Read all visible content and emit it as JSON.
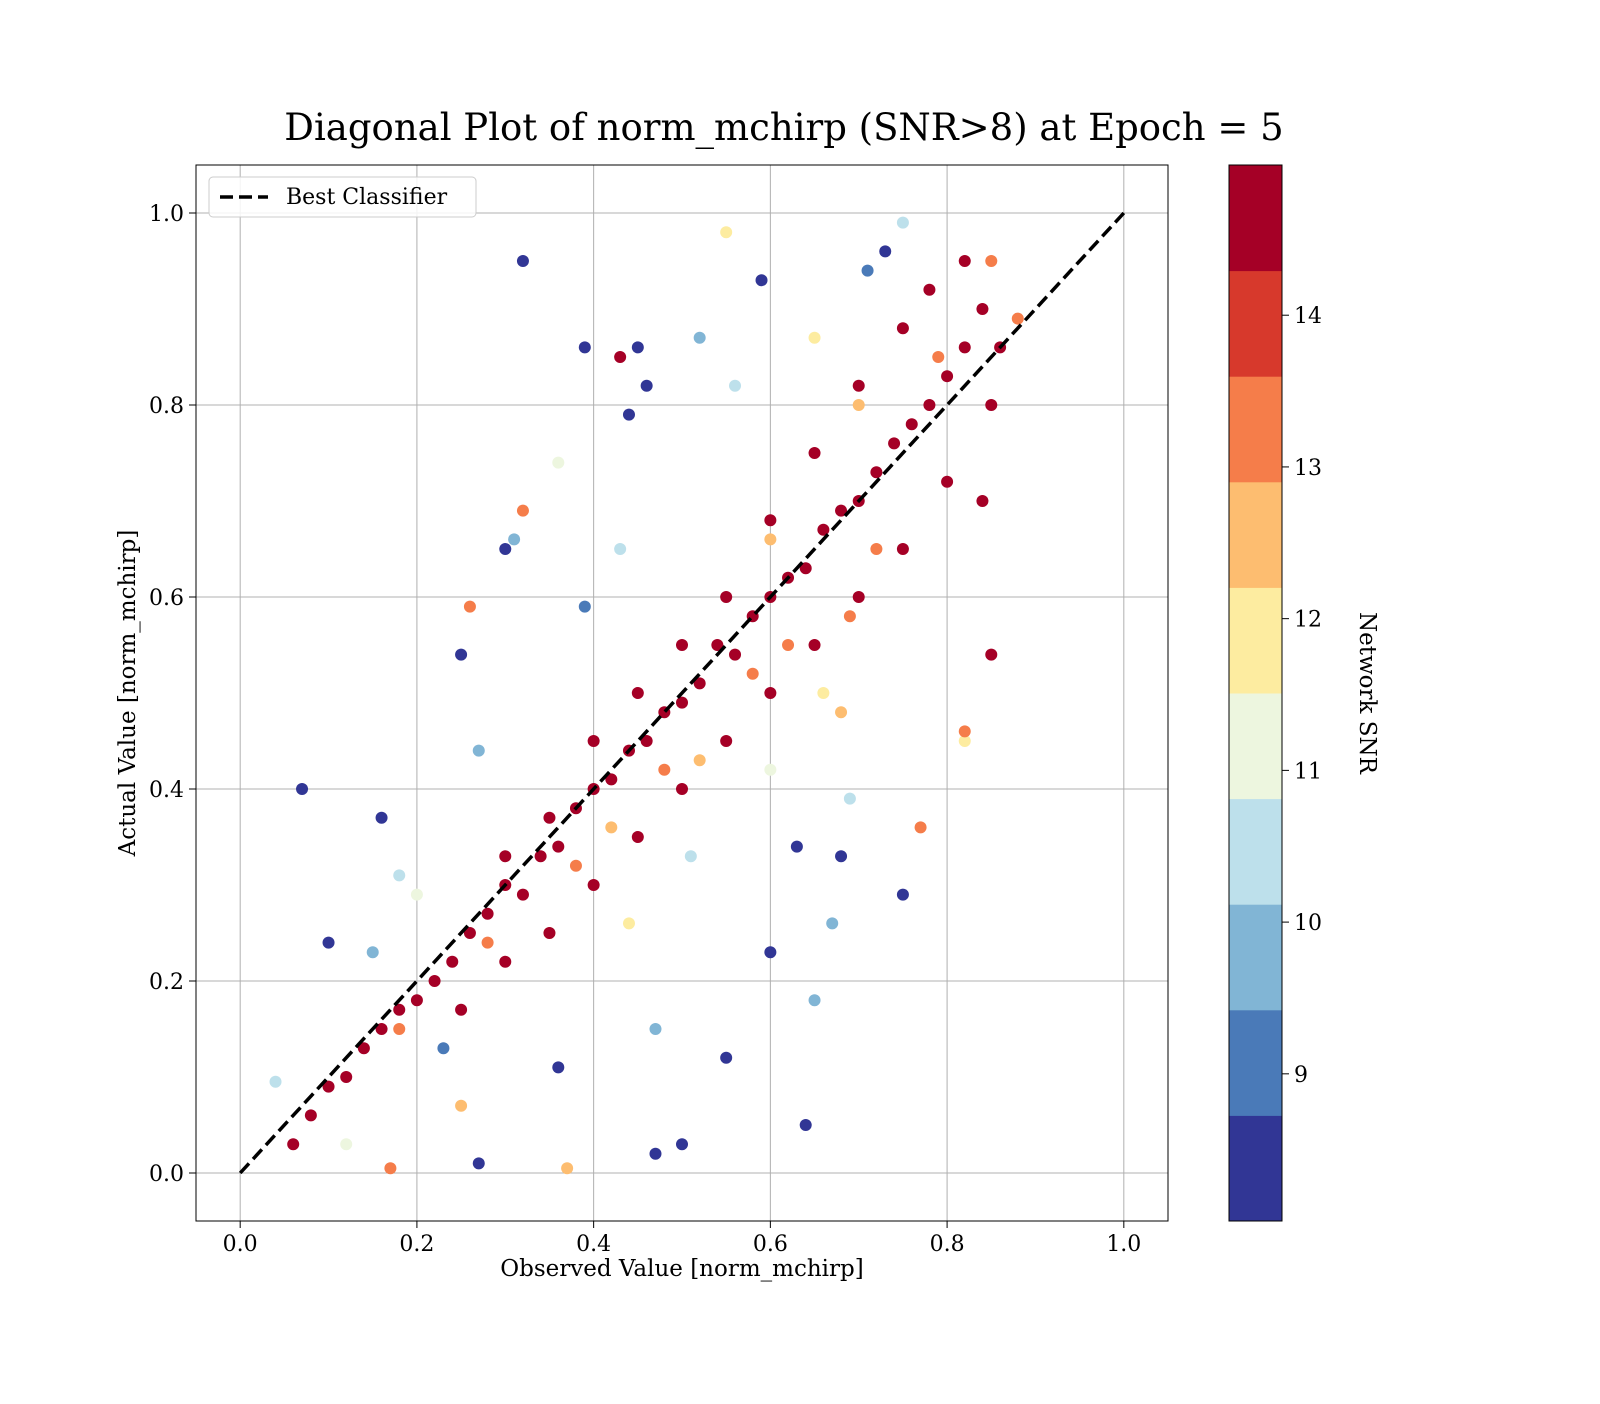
{
  "chart_data": {
    "type": "scatter",
    "title": "Diagonal Plot of norm_mchirp (SNR>8) at Epoch = 5",
    "x_label": "Observed Value [norm_mchirp]",
    "y_label": "Actual Value [norm_mchirp]",
    "xlim": [
      -0.05,
      1.05
    ],
    "ylim": [
      -0.05,
      1.05
    ],
    "xticks": [
      {
        "value": 0,
        "label": "0.0"
      },
      0.2,
      0.4,
      0.6,
      0.8,
      {
        "value": 1,
        "label": "1.0"
      }
    ],
    "yticks": [
      {
        "value": 0,
        "label": "0.0"
      },
      0.2,
      0.4,
      0.6,
      0.8,
      {
        "value": 1,
        "label": "1.0"
      }
    ],
    "grid": true,
    "legend": "upper left",
    "reference_line": {
      "name": "Best Classifier",
      "x": [
        0,
        1
      ],
      "values": [
        0,
        1
      ],
      "color": "#000000",
      "style": "dashed"
    },
    "x": [
      0.32,
      0.07,
      0.16,
      0.1,
      0.55,
      0.64,
      0.75,
      0.47,
      0.5,
      0.73,
      0.59,
      0.39,
      0.46,
      0.3,
      0.25,
      0.44,
      0.63,
      0.68,
      0.36,
      0.27,
      0.6,
      0.45,
      0.39,
      0.23,
      0.71,
      0.65,
      0.67,
      0.31,
      0.27,
      0.15,
      0.52,
      0.47,
      0.75,
      0.56,
      0.43,
      0.51,
      0.69,
      0.18,
      0.04,
      0.36,
      0.12,
      0.6,
      0.2,
      0.55,
      0.66,
      0.44,
      0.82,
      0.35,
      0.65,
      0.7,
      0.6,
      0.52,
      0.42,
      0.68,
      0.37,
      0.25,
      0.62,
      0.72,
      0.48,
      0.38,
      0.28,
      0.18,
      0.85,
      0.79,
      0.69,
      0.58,
      0.77,
      0.26,
      0.17,
      0.32,
      0.82,
      0.88,
      0.06,
      0.08,
      0.1,
      0.12,
      0.14,
      0.16,
      0.18,
      0.2,
      0.22,
      0.24,
      0.26,
      0.28,
      0.3,
      0.32,
      0.34,
      0.36,
      0.38,
      0.4,
      0.42,
      0.44,
      0.46,
      0.48,
      0.5,
      0.52,
      0.54,
      0.56,
      0.58,
      0.6,
      0.62,
      0.64,
      0.66,
      0.68,
      0.7,
      0.72,
      0.74,
      0.76,
      0.78,
      0.8,
      0.82,
      0.84,
      0.82,
      0.85,
      0.8,
      0.75,
      0.7,
      0.65,
      0.6,
      0.55,
      0.5,
      0.45,
      0.4,
      0.35,
      0.3,
      0.25,
      0.45,
      0.4,
      0.35,
      0.55,
      0.6,
      0.65,
      0.7,
      0.75,
      0.78,
      0.86,
      0.84,
      0.5,
      0.3,
      0.85,
      0.43
    ],
    "values": [
      0.95,
      0.4,
      0.37,
      0.24,
      0.12,
      0.05,
      0.29,
      0.02,
      0.03,
      0.96,
      0.93,
      0.86,
      0.82,
      0.65,
      0.54,
      0.79,
      0.34,
      0.33,
      0.11,
      0.01,
      0.23,
      0.86,
      0.59,
      0.13,
      0.94,
      0.18,
      0.26,
      0.66,
      0.44,
      0.23,
      0.87,
      0.15,
      0.99,
      0.82,
      0.65,
      0.33,
      0.39,
      0.31,
      0.095,
      0.74,
      0.03,
      0.42,
      0.29,
      0.98,
      0.5,
      0.26,
      0.45,
      0.25,
      0.87,
      0.8,
      0.66,
      0.43,
      0.36,
      0.48,
      0.005,
      0.07,
      0.55,
      0.65,
      0.42,
      0.32,
      0.24,
      0.15,
      0.95,
      0.85,
      0.58,
      0.52,
      0.36,
      0.59,
      0.005,
      0.69,
      0.46,
      0.89,
      0.03,
      0.06,
      0.09,
      0.1,
      0.13,
      0.15,
      0.17,
      0.18,
      0.2,
      0.22,
      0.25,
      0.27,
      0.3,
      0.29,
      0.33,
      0.34,
      0.38,
      0.4,
      0.41,
      0.44,
      0.45,
      0.48,
      0.49,
      0.51,
      0.55,
      0.54,
      0.58,
      0.6,
      0.62,
      0.63,
      0.67,
      0.69,
      0.7,
      0.73,
      0.76,
      0.78,
      0.8,
      0.83,
      0.86,
      0.9,
      0.95,
      0.8,
      0.72,
      0.65,
      0.6,
      0.55,
      0.5,
      0.45,
      0.4,
      0.35,
      0.3,
      0.25,
      0.22,
      0.17,
      0.5,
      0.45,
      0.37,
      0.6,
      0.68,
      0.75,
      0.82,
      0.88,
      0.92,
      0.86,
      0.7,
      0.55,
      0.33,
      0.54,
      0.85
    ],
    "color_values": [
      8.3,
      8.3,
      8.3,
      8.3,
      8.3,
      8.3,
      8.3,
      8.3,
      8.3,
      8.3,
      8.3,
      8.3,
      8.3,
      8.3,
      8.3,
      8.3,
      8.3,
      8.3,
      8.3,
      8.3,
      8.3,
      8.3,
      9.1,
      9.1,
      9.1,
      9.7,
      9.7,
      9.7,
      9.7,
      9.7,
      9.7,
      9.7,
      10.4,
      10.4,
      10.4,
      10.4,
      10.4,
      10.4,
      10.4,
      11.3,
      11.3,
      11.3,
      11.3,
      11.8,
      11.8,
      11.8,
      11.8,
      11.8,
      11.8,
      12.5,
      12.5,
      12.5,
      12.5,
      12.5,
      12.5,
      12.5,
      13.2,
      13.2,
      13.2,
      13.2,
      13.2,
      13.2,
      13.2,
      13.2,
      13.2,
      13.2,
      13.2,
      13.2,
      13.2,
      13.2,
      13.2,
      13.2,
      14.5,
      14.5,
      14.5,
      14.5,
      14.5,
      14.5,
      14.5,
      14.5,
      14.5,
      14.5,
      14.5,
      14.5,
      14.5,
      14.5,
      14.5,
      14.5,
      14.5,
      14.5,
      14.5,
      14.5,
      14.5,
      14.5,
      14.5,
      14.5,
      14.5,
      14.5,
      14.5,
      14.5,
      14.5,
      14.5,
      14.5,
      14.5,
      14.5,
      14.5,
      14.5,
      14.5,
      14.5,
      14.5,
      14.5,
      14.5,
      14.5,
      14.5,
      14.5,
      14.5,
      14.5,
      14.5,
      14.5,
      14.5,
      14.5,
      14.5,
      14.5,
      14.5,
      14.5,
      14.5,
      14.5,
      14.5,
      14.5,
      14.5,
      14.5,
      14.5,
      14.5,
      14.5,
      14.5,
      14.5,
      14.5,
      14.5,
      14.5,
      14.5,
      14.5
    ],
    "colorbar": {
      "label": "Network SNR",
      "lim": [
        8.03,
        14.99
      ],
      "ticks": [
        9,
        10,
        11,
        12,
        13,
        14
      ],
      "colors": [
        "#313695",
        "#4a7ab8",
        "#81b5d5",
        "#bde0eb",
        "#edf6df",
        "#fdeca0",
        "#fdbd70",
        "#f57d4a",
        "#d7392c",
        "#a50026"
      ]
    }
  }
}
